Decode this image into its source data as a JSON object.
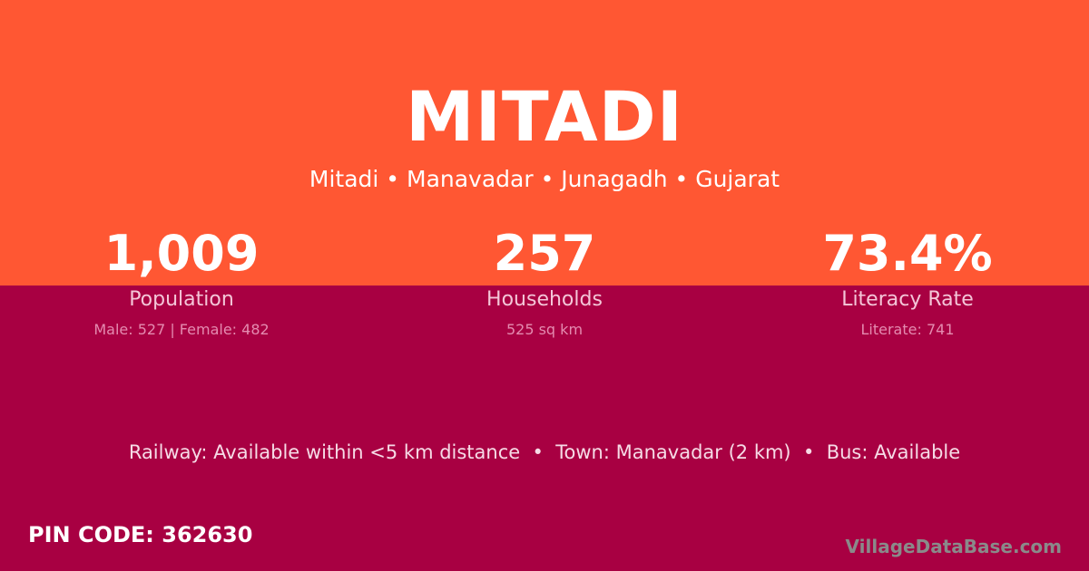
{
  "colors": {
    "top": "#ff5733",
    "bottom": "#a80042"
  },
  "title": "MITADI",
  "subtitle": "Mitadi • Manavadar • Junagadh • Gujarat",
  "stats": [
    {
      "value": "1,009",
      "label": "Population",
      "detail": "Male: 527 | Female: 482"
    },
    {
      "value": "257",
      "label": "Households",
      "detail": "525 sq km"
    },
    {
      "value": "73.4%",
      "label": "Literacy Rate",
      "detail": "Literate: 741"
    }
  ],
  "info": "Railway: Available within <5 km distance  •  Town: Manavadar (2 km)  •  Bus: Available",
  "pin": "PIN CODE: 362630",
  "watermark": "VillageDataBase.com"
}
